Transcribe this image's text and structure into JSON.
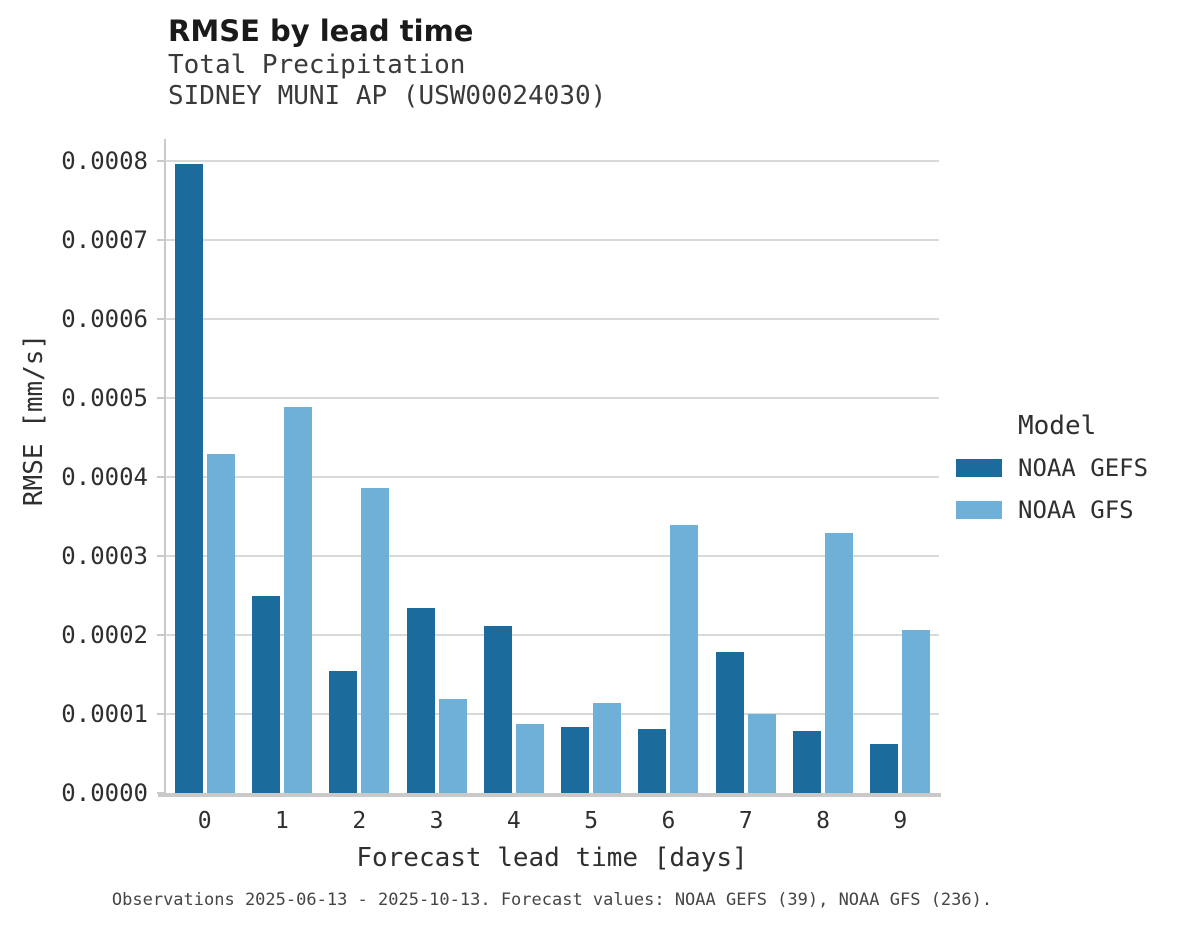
{
  "header": {
    "title": "RMSE by lead time",
    "subtitle_line1": "Total Precipitation",
    "subtitle_line2": "SIDNEY MUNI AP (USW00024030)"
  },
  "legend": {
    "title": "Model",
    "entries": [
      {
        "label": "NOAA GEFS",
        "color": "#1b6b9d"
      },
      {
        "label": "NOAA GFS",
        "color": "#6fb0d9"
      }
    ]
  },
  "caption": "Observations 2025-06-13 - 2025-10-13. Forecast values: NOAA GEFS (39), NOAA GFS (236).",
  "chart_data": {
    "type": "bar",
    "title": "RMSE by lead time",
    "subtitle": "Total Precipitation — SIDNEY MUNI AP (USW00024030)",
    "xlabel": "Forecast lead time [days]",
    "ylabel": "RMSE [mm/s]",
    "categories": [
      "0",
      "1",
      "2",
      "3",
      "4",
      "5",
      "6",
      "7",
      "8",
      "9"
    ],
    "series": [
      {
        "name": "NOAA GEFS",
        "color": "#1b6b9d",
        "values": [
          0.000797,
          0.00025,
          0.000154,
          0.000234,
          0.000211,
          8.3e-05,
          8.1e-05,
          0.000179,
          7.8e-05,
          6.2e-05
        ]
      },
      {
        "name": "NOAA GFS",
        "color": "#6fb0d9",
        "values": [
          0.000429,
          0.000489,
          0.000386,
          0.000119,
          8.8e-05,
          0.000114,
          0.000339,
          0.0001,
          0.000329,
          0.000207
        ]
      }
    ],
    "ylim": [
      0,
      0.000828
    ],
    "yticks": [
      0.0,
      0.0001,
      0.0002,
      0.0003,
      0.0004,
      0.0005,
      0.0006,
      0.0007,
      0.0008
    ],
    "ytick_decimals": 4,
    "grid": "horizontal",
    "legend_position": "right"
  },
  "style": {
    "grid_color": "#d9d9d9",
    "spine_color": "#c9c9c9",
    "text_color": "#2f2f2f"
  }
}
